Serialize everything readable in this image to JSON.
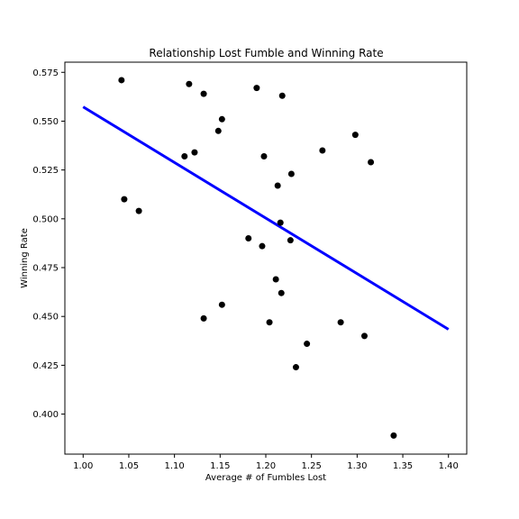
{
  "chart_data": {
    "type": "scatter",
    "title": "Relationship Lost Fumble and Winning Rate",
    "xlabel": "Average # of Fumbles Lost",
    "ylabel": "Winning Rate",
    "xlim": [
      0.98,
      1.42
    ],
    "ylim": [
      0.3795,
      0.5802
    ],
    "xticks": [
      1.0,
      1.05,
      1.1,
      1.15,
      1.2,
      1.25,
      1.3,
      1.35,
      1.4
    ],
    "xtick_labels": [
      "1.00",
      "1.05",
      "1.10",
      "1.15",
      "1.20",
      "1.25",
      "1.30",
      "1.35",
      "1.40"
    ],
    "yticks": [
      0.4,
      0.425,
      0.45,
      0.475,
      0.5,
      0.525,
      0.55,
      0.575
    ],
    "ytick_labels": [
      "0.400",
      "0.425",
      "0.450",
      "0.475",
      "0.500",
      "0.525",
      "0.550",
      "0.575"
    ],
    "grid": false,
    "points": [
      {
        "x": 1.042,
        "y": 0.571
      },
      {
        "x": 1.045,
        "y": 0.51
      },
      {
        "x": 1.061,
        "y": 0.504
      },
      {
        "x": 1.111,
        "y": 0.532
      },
      {
        "x": 1.116,
        "y": 0.569
      },
      {
        "x": 1.122,
        "y": 0.534
      },
      {
        "x": 1.132,
        "y": 0.564
      },
      {
        "x": 1.132,
        "y": 0.449
      },
      {
        "x": 1.148,
        "y": 0.545
      },
      {
        "x": 1.152,
        "y": 0.551
      },
      {
        "x": 1.152,
        "y": 0.456
      },
      {
        "x": 1.181,
        "y": 0.49
      },
      {
        "x": 1.19,
        "y": 0.567
      },
      {
        "x": 1.196,
        "y": 0.486
      },
      {
        "x": 1.198,
        "y": 0.532
      },
      {
        "x": 1.204,
        "y": 0.447
      },
      {
        "x": 1.211,
        "y": 0.469
      },
      {
        "x": 1.213,
        "y": 0.517
      },
      {
        "x": 1.216,
        "y": 0.498
      },
      {
        "x": 1.217,
        "y": 0.462
      },
      {
        "x": 1.218,
        "y": 0.563
      },
      {
        "x": 1.227,
        "y": 0.489
      },
      {
        "x": 1.228,
        "y": 0.523
      },
      {
        "x": 1.233,
        "y": 0.424
      },
      {
        "x": 1.245,
        "y": 0.436
      },
      {
        "x": 1.262,
        "y": 0.535
      },
      {
        "x": 1.282,
        "y": 0.447
      },
      {
        "x": 1.298,
        "y": 0.543
      },
      {
        "x": 1.308,
        "y": 0.44
      },
      {
        "x": 1.315,
        "y": 0.529
      },
      {
        "x": 1.34,
        "y": 0.389
      }
    ],
    "trend_line": {
      "x": [
        1.0,
        1.4
      ],
      "y": [
        0.5573,
        0.4434
      ]
    },
    "colors": {
      "points": "#000000",
      "trend_line": "#0000ff",
      "axes": "#000000",
      "background": "#ffffff"
    }
  }
}
